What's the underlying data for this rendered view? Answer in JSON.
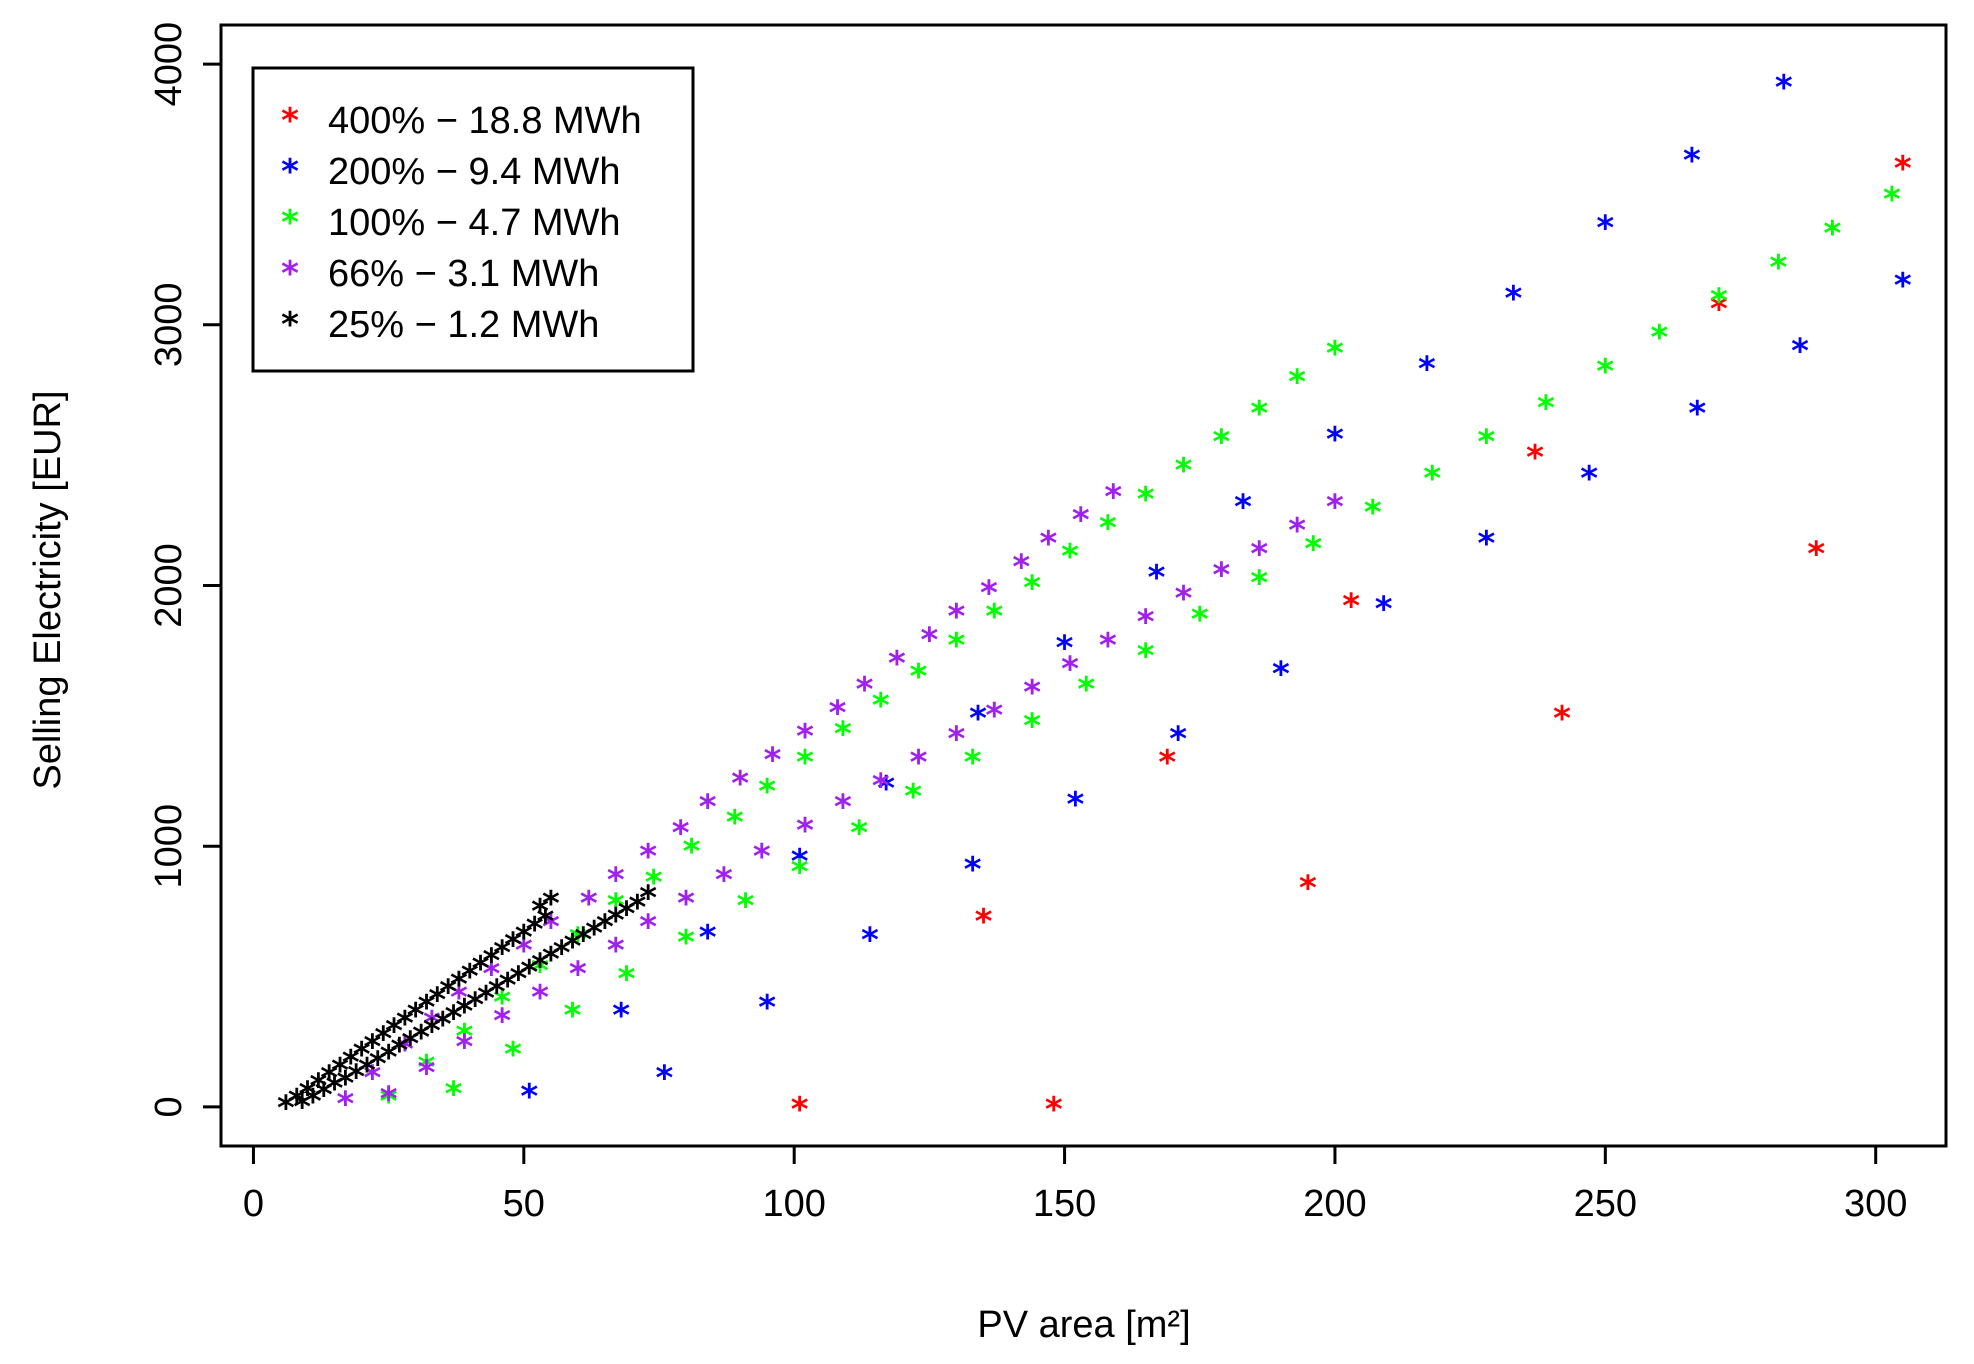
{
  "chart_data": {
    "type": "scatter",
    "title": "",
    "xlabel": "PV area [m²]",
    "ylabel": "Selling Electricity [EUR]",
    "xlim": [
      -6,
      313
    ],
    "ylim": [
      -150,
      4150
    ],
    "xticks": [
      0,
      50,
      100,
      150,
      200,
      250,
      300
    ],
    "yticks": [
      0,
      1000,
      2000,
      3000,
      4000
    ],
    "xtick_labels": [
      "0",
      "50",
      "100",
      "150",
      "200",
      "250",
      "300"
    ],
    "ytick_labels": [
      "0",
      "1000",
      "2000",
      "3000",
      "4000"
    ],
    "marker_symbol": "*",
    "grid": false,
    "legend_position": "top-left",
    "series": [
      {
        "name": "400% − 18.8 MWh",
        "color": "#ff0000",
        "points": [
          [
            101,
            0
          ],
          [
            148,
            0
          ],
          [
            135,
            720
          ],
          [
            169,
            1330
          ],
          [
            195,
            850
          ],
          [
            203,
            1930
          ],
          [
            237,
            2500
          ],
          [
            242,
            1500
          ],
          [
            271,
            3070
          ],
          [
            289,
            2130
          ],
          [
            305,
            3610
          ]
        ]
      },
      {
        "name": "200% − 9.4 MWh",
        "color": "#0000ff",
        "points": [
          [
            51,
            50
          ],
          [
            76,
            120
          ],
          [
            84,
            660
          ],
          [
            95,
            390
          ],
          [
            101,
            950
          ],
          [
            114,
            650
          ],
          [
            117,
            1230
          ],
          [
            133,
            920
          ],
          [
            134,
            1500
          ],
          [
            150,
            1770
          ],
          [
            152,
            1170
          ],
          [
            171,
            1420
          ],
          [
            167,
            2040
          ],
          [
            68,
            360
          ],
          [
            183,
            2310
          ],
          [
            190,
            1670
          ],
          [
            200,
            2570
          ],
          [
            209,
            1920
          ],
          [
            217,
            2840
          ],
          [
            228,
            2170
          ],
          [
            233,
            3110
          ],
          [
            247,
            2420
          ],
          [
            250,
            3380
          ],
          [
            266,
            3640
          ],
          [
            267,
            2670
          ],
          [
            283,
            3920
          ],
          [
            286,
            2910
          ],
          [
            305,
            3160
          ]
        ]
      },
      {
        "name": "100% − 4.7 MWh",
        "color": "#00ff00",
        "points": [
          [
            25,
            30
          ],
          [
            32,
            160
          ],
          [
            37,
            60
          ],
          [
            39,
            280
          ],
          [
            46,
            410
          ],
          [
            48,
            210
          ],
          [
            53,
            530
          ],
          [
            59,
            360
          ],
          [
            60,
            650
          ],
          [
            67,
            780
          ],
          [
            69,
            500
          ],
          [
            74,
            870
          ],
          [
            80,
            640
          ],
          [
            81,
            990
          ],
          [
            89,
            1100
          ],
          [
            91,
            780
          ],
          [
            95,
            1220
          ],
          [
            101,
            910
          ],
          [
            102,
            1330
          ],
          [
            109,
            1440
          ],
          [
            112,
            1060
          ],
          [
            116,
            1550
          ],
          [
            122,
            1200
          ],
          [
            123,
            1660
          ],
          [
            130,
            1780
          ],
          [
            133,
            1330
          ],
          [
            137,
            1890
          ],
          [
            144,
            1470
          ],
          [
            144,
            2000
          ],
          [
            151,
            2120
          ],
          [
            154,
            1610
          ],
          [
            158,
            2230
          ],
          [
            165,
            2340
          ],
          [
            165,
            1740
          ],
          [
            172,
            2450
          ],
          [
            175,
            1880
          ],
          [
            179,
            2560
          ],
          [
            186,
            2670
          ],
          [
            186,
            2020
          ],
          [
            193,
            2790
          ],
          [
            196,
            2150
          ],
          [
            200,
            2900
          ],
          [
            207,
            2290
          ],
          [
            218,
            2420
          ],
          [
            228,
            2560
          ],
          [
            239,
            2690
          ],
          [
            250,
            2830
          ],
          [
            260,
            2960
          ],
          [
            271,
            3100
          ],
          [
            282,
            3230
          ],
          [
            292,
            3360
          ],
          [
            303,
            3490
          ]
        ]
      },
      {
        "name": "66% − 3.1 MWh",
        "color": "#a020f0",
        "points": [
          [
            17,
            20
          ],
          [
            22,
            120
          ],
          [
            25,
            40
          ],
          [
            28,
            230
          ],
          [
            32,
            140
          ],
          [
            33,
            330
          ],
          [
            38,
            430
          ],
          [
            39,
            240
          ],
          [
            44,
            520
          ],
          [
            46,
            340
          ],
          [
            50,
            610
          ],
          [
            55,
            700
          ],
          [
            53,
            430
          ],
          [
            60,
            520
          ],
          [
            62,
            790
          ],
          [
            67,
            880
          ],
          [
            67,
            610
          ],
          [
            73,
            700
          ],
          [
            73,
            970
          ],
          [
            79,
            1060
          ],
          [
            80,
            790
          ],
          [
            84,
            1160
          ],
          [
            87,
            880
          ],
          [
            90,
            1250
          ],
          [
            94,
            970
          ],
          [
            96,
            1340
          ],
          [
            102,
            1430
          ],
          [
            102,
            1070
          ],
          [
            108,
            1520
          ],
          [
            109,
            1160
          ],
          [
            113,
            1610
          ],
          [
            116,
            1240
          ],
          [
            119,
            1710
          ],
          [
            123,
            1330
          ],
          [
            125,
            1800
          ],
          [
            130,
            1420
          ],
          [
            130,
            1890
          ],
          [
            136,
            1980
          ],
          [
            137,
            1510
          ],
          [
            142,
            2080
          ],
          [
            144,
            1600
          ],
          [
            147,
            2170
          ],
          [
            151,
            1690
          ],
          [
            153,
            2260
          ],
          [
            158,
            1780
          ],
          [
            159,
            2350
          ],
          [
            165,
            1870
          ],
          [
            172,
            1960
          ],
          [
            179,
            2050
          ],
          [
            186,
            2130
          ],
          [
            193,
            2220
          ],
          [
            200,
            2310
          ]
        ]
      },
      {
        "name": "25% − 1.2 MWh",
        "color": "#000000",
        "points": [
          [
            6,
            5
          ],
          [
            8,
            30
          ],
          [
            10,
            60
          ],
          [
            12,
            90
          ],
          [
            14,
            120
          ],
          [
            16,
            150
          ],
          [
            18,
            180
          ],
          [
            20,
            210
          ],
          [
            22,
            240
          ],
          [
            24,
            270
          ],
          [
            26,
            300
          ],
          [
            28,
            330
          ],
          [
            30,
            360
          ],
          [
            32,
            390
          ],
          [
            34,
            420
          ],
          [
            36,
            450
          ],
          [
            38,
            480
          ],
          [
            40,
            510
          ],
          [
            42,
            540
          ],
          [
            44,
            570
          ],
          [
            46,
            600
          ],
          [
            48,
            630
          ],
          [
            50,
            660
          ],
          [
            52,
            690
          ],
          [
            54,
            720
          ],
          [
            55,
            790
          ],
          [
            53,
            760
          ],
          [
            9,
            10
          ],
          [
            11,
            30
          ],
          [
            13,
            55
          ],
          [
            15,
            80
          ],
          [
            17,
            100
          ],
          [
            19,
            125
          ],
          [
            21,
            150
          ],
          [
            23,
            175
          ],
          [
            25,
            200
          ],
          [
            27,
            225
          ],
          [
            29,
            250
          ],
          [
            31,
            275
          ],
          [
            33,
            300
          ],
          [
            35,
            325
          ],
          [
            37,
            350
          ],
          [
            39,
            375
          ],
          [
            41,
            400
          ],
          [
            43,
            425
          ],
          [
            45,
            450
          ],
          [
            47,
            475
          ],
          [
            49,
            500
          ],
          [
            51,
            525
          ],
          [
            53,
            550
          ],
          [
            55,
            575
          ],
          [
            57,
            600
          ],
          [
            59,
            625
          ],
          [
            61,
            650
          ],
          [
            63,
            675
          ],
          [
            65,
            700
          ],
          [
            67,
            725
          ],
          [
            69,
            750
          ],
          [
            71,
            775
          ],
          [
            73,
            810
          ]
        ]
      }
    ]
  }
}
